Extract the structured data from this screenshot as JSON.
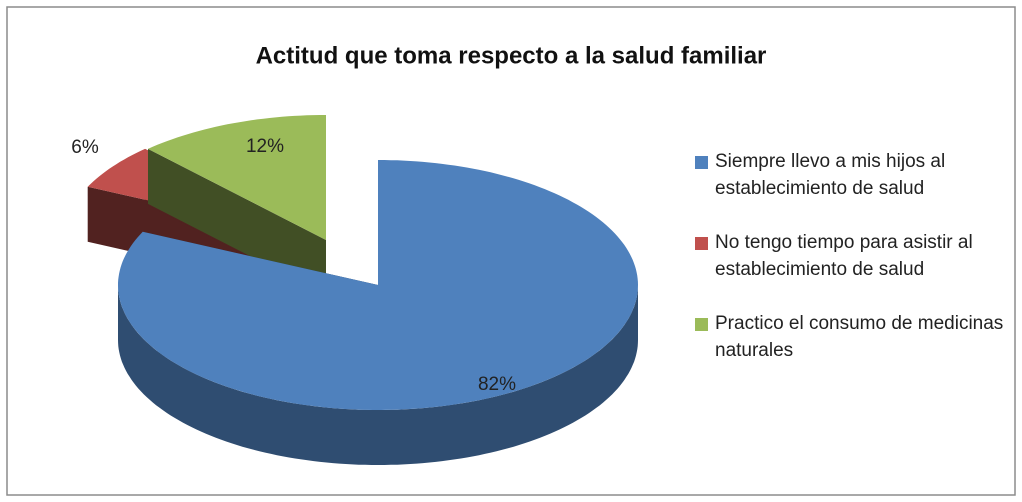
{
  "chart_data": {
    "type": "pie",
    "title": "Actitud que toma respecto a la salud familiar",
    "categories": [
      "Siempre llevo a mis hijos al establecimiento de salud",
      "No tengo tiempo para asistir al establecimiento de salud",
      "Practico el consumo de medicinas naturales"
    ],
    "values": [
      82,
      6,
      12
    ],
    "value_labels": [
      "82%",
      "6%",
      "12%"
    ],
    "colors": [
      "#4f81bd",
      "#c0504d",
      "#9bbb59"
    ],
    "legend": "right"
  }
}
